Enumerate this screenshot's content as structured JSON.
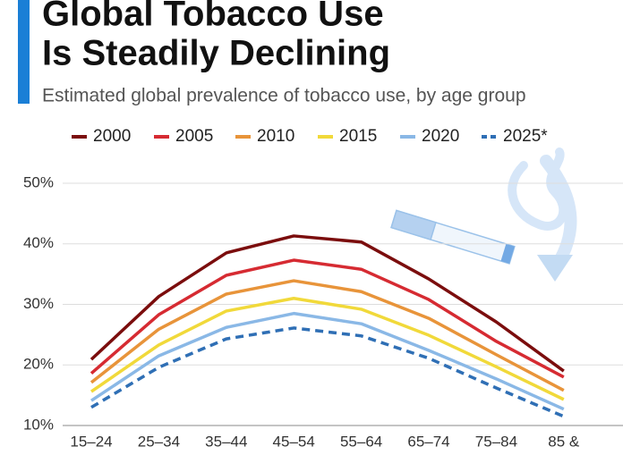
{
  "chart_data": {
    "type": "line",
    "title": [
      "Global Tobacco Use",
      "Is Steadily Declining"
    ],
    "subtitle": "Estimated global prevalence of tobacco use, by age group",
    "categories": [
      "15–24",
      "25–34",
      "35–44",
      "45–54",
      "55–64",
      "65–74",
      "75–84",
      "85 &"
    ],
    "series": [
      {
        "name": "2000",
        "color": "#7b0d0d",
        "dashed": false,
        "values": [
          20.9,
          31.3,
          38.5,
          41.3,
          40.3,
          34.2,
          27.1,
          19.0
        ]
      },
      {
        "name": "2005",
        "color": "#d62b32",
        "dashed": false,
        "values": [
          18.6,
          28.3,
          34.8,
          37.3,
          35.8,
          30.8,
          23.9,
          18.0
        ]
      },
      {
        "name": "2010",
        "color": "#e8943a",
        "dashed": false,
        "values": [
          17.1,
          25.9,
          31.7,
          33.9,
          32.1,
          27.7,
          21.7,
          15.8
        ]
      },
      {
        "name": "2015",
        "color": "#f1d93a",
        "dashed": false,
        "values": [
          15.6,
          23.3,
          28.9,
          31.0,
          29.2,
          24.9,
          19.7,
          14.3
        ]
      },
      {
        "name": "2020",
        "color": "#8ab8e6",
        "dashed": false,
        "values": [
          14.1,
          21.5,
          26.2,
          28.5,
          26.8,
          22.4,
          17.7,
          12.7
        ]
      },
      {
        "name": "2025*",
        "color": "#2f6fb5",
        "dashed": true,
        "values": [
          13.0,
          19.6,
          24.3,
          26.1,
          24.8,
          21.1,
          16.2,
          11.5
        ]
      }
    ],
    "ylim": [
      10,
      50
    ],
    "yticks": [
      {
        "value": 10,
        "label": "10%"
      },
      {
        "value": 20,
        "label": "20%"
      },
      {
        "value": 30,
        "label": "30%"
      },
      {
        "value": 40,
        "label": "40%"
      },
      {
        "value": 50,
        "label": "50%"
      }
    ],
    "grid": true
  }
}
